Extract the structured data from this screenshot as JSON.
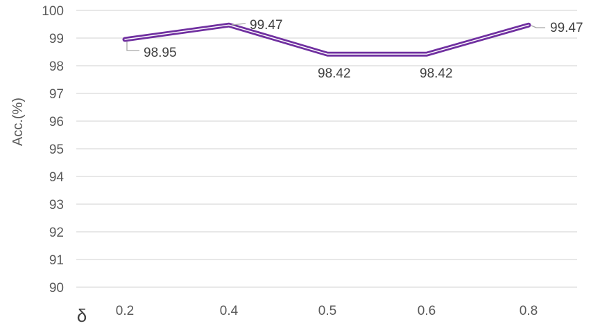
{
  "chart_data": {
    "type": "line",
    "categories": [
      "0.2",
      "0.4",
      "0.5",
      "0.6",
      "0.8"
    ],
    "series": [
      {
        "values": [
          98.95,
          99.47,
          98.42,
          98.42,
          99.47
        ],
        "data_labels": [
          "98.95",
          "99.47",
          "98.42",
          "98.42",
          "99.47"
        ],
        "color": "#7030a0"
      }
    ],
    "ylabel": "Acc.(%)",
    "xlabel": "δ",
    "ylim": [
      90,
      100
    ],
    "yticks": [
      90,
      91,
      92,
      93,
      94,
      95,
      96,
      97,
      98,
      99,
      100
    ],
    "grid": true,
    "legend": "none",
    "colors": {
      "line": "#7030a0",
      "grid": "#d9d9d9",
      "text": "#595959"
    }
  }
}
